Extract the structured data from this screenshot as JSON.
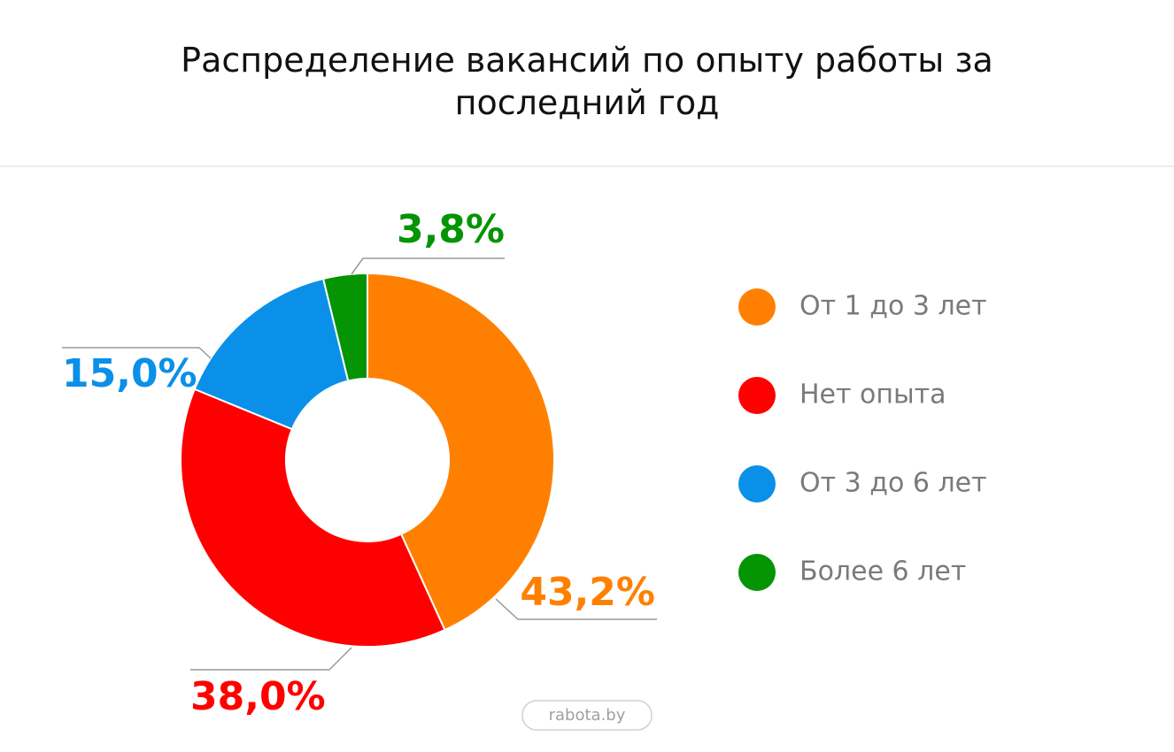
{
  "chart_data": {
    "type": "donut",
    "title": "Распределение вакансий по опыту работы за последний год",
    "categories": [
      "От 1 до 3 лет",
      "Нет опыта",
      "От 3 до 6 лет",
      "Более 6 лет"
    ],
    "values": [
      43.2,
      38.0,
      15.0,
      3.8
    ],
    "value_labels": [
      "43,2%",
      "38,0%",
      "15,0%",
      "3,8%"
    ],
    "colors": [
      "#ff8000",
      "#ff0000",
      "#0a90e8",
      "#049404"
    ],
    "legend": "right",
    "source": "rabota.by"
  }
}
